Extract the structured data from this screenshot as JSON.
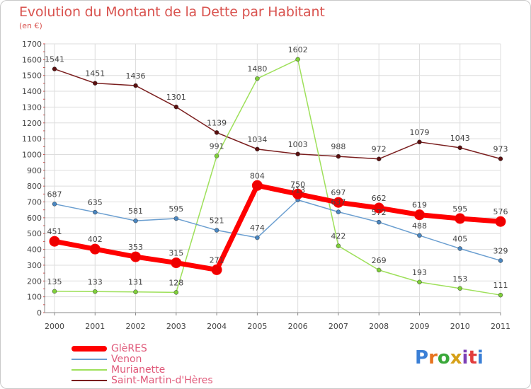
{
  "title": "Evolution du Montant de la Dette par Habitant",
  "unit": "(en €)",
  "logo": {
    "text": "Proxiti",
    "colors": [
      "#3a7fd6",
      "#e7731e",
      "#3aa83a",
      "#d6a018",
      "#7c3fb5",
      "#e23d3d",
      "#3a7fd6"
    ]
  },
  "chart_data": {
    "type": "line",
    "x": [
      "2000",
      "2001",
      "2002",
      "2003",
      "2004",
      "2005",
      "2006",
      "2007",
      "2008",
      "2009",
      "2010",
      "2011"
    ],
    "ylim": [
      0,
      1700
    ],
    "yticks": [
      0,
      100,
      200,
      300,
      400,
      500,
      600,
      700,
      800,
      900,
      1000,
      1100,
      1200,
      1300,
      1400,
      1500,
      1600,
      1700
    ],
    "grid": true,
    "legend_position": "bottom-left",
    "series": [
      {
        "name": "Saint-Martin-d'Hères",
        "color": "#7a1e1e",
        "marker": "#5a1010",
        "width": 1.5,
        "values": [
          1541,
          1451,
          1436,
          1301,
          1139,
          1034,
          1003,
          988,
          972,
          1079,
          1043,
          973
        ]
      },
      {
        "name": "Murianette",
        "color": "#9ee05a",
        "marker": "#7fcf3a",
        "width": 1.5,
        "values": [
          135,
          133,
          131,
          128,
          991,
          1480,
          1602,
          422,
          269,
          193,
          153,
          111
        ]
      },
      {
        "name": "Venon",
        "color": "#6a9ed0",
        "marker": "#4a86c0",
        "width": 1.5,
        "values": [
          687,
          635,
          581,
          595,
          521,
          474,
          713,
          637,
          572,
          488,
          405,
          329
        ]
      },
      {
        "name": "GlèRES",
        "color": "#ff0000",
        "marker": "#ee0000",
        "width": 7,
        "values": [
          451,
          402,
          353,
          315,
          271,
          804,
          750,
          697,
          662,
          619,
          595,
          576
        ]
      }
    ]
  },
  "legend": [
    {
      "label": "GlèRES",
      "color": "#ff0000",
      "thickness": 8
    },
    {
      "label": "Venon",
      "color": "#6a9ed0",
      "thickness": 2
    },
    {
      "label": "Murianette",
      "color": "#9ee05a",
      "thickness": 2
    },
    {
      "label": "Saint-Martin-d'Hères",
      "color": "#7a1e1e",
      "thickness": 2
    }
  ]
}
